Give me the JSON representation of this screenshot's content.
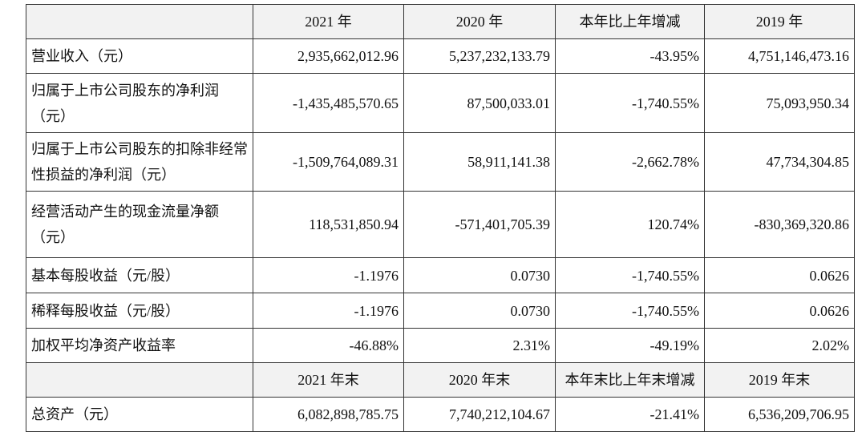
{
  "table": {
    "header": [
      "2021 年",
      "2020 年",
      "本年比上年增减",
      "2019 年"
    ],
    "rows": [
      [
        "营业收入（元）",
        "2,935,662,012.96",
        "5,237,232,133.79",
        "-43.95%",
        "4,751,146,473.16"
      ],
      [
        "归属于上市公司股东的净利润（元）",
        "-1,435,485,570.65",
        "87,500,033.01",
        "-1,740.55%",
        "75,093,950.34"
      ],
      [
        "归属于上市公司股东的扣除非经常性损益的净利润（元）",
        "-1,509,764,089.31",
        "58,911,141.38",
        "-2,662.78%",
        "47,734,304.85"
      ],
      [
        "经营活动产生的现金流量净额（元）",
        "118,531,850.94",
        "-571,401,705.39",
        "120.74%",
        "-830,369,320.86"
      ],
      [
        "基本每股收益（元/股）",
        "-1.1976",
        "0.0730",
        "-1,740.55%",
        "0.0626"
      ],
      [
        "稀释每股收益（元/股）",
        "-1.1976",
        "0.0730",
        "-1,740.55%",
        "0.0626"
      ],
      [
        "加权平均净资产收益率",
        "-46.88%",
        "2.31%",
        "-49.19%",
        "2.02%"
      ]
    ],
    "header2": [
      "2021 年末",
      "2020 年末",
      "本年末比上年末增减",
      "2019 年末"
    ],
    "rows2": [
      [
        "总资产（元）",
        "6,082,898,785.75",
        "7,740,212,104.67",
        "-21.41%",
        "6,536,209,706.95"
      ]
    ]
  }
}
